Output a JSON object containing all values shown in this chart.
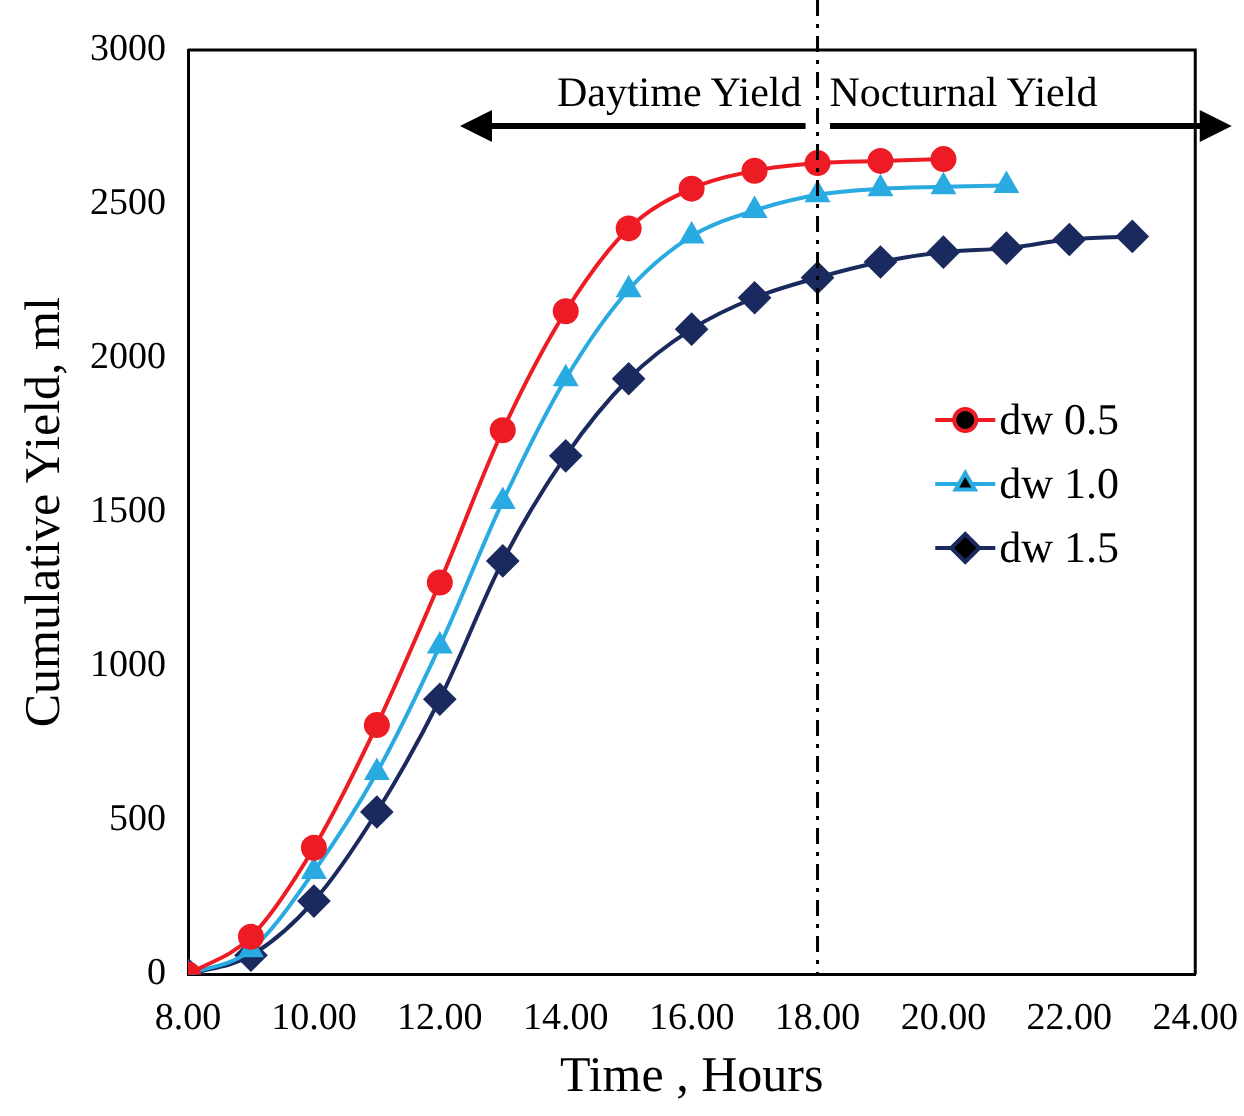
{
  "chart_data": {
    "type": "line",
    "xlabel": "Time , Hours",
    "ylabel": "Cumulative Yield, ml",
    "xlim": [
      8,
      24
    ],
    "xticks": [
      {
        "value": 8,
        "label": "8.00"
      },
      {
        "value": 10,
        "label": "10.00"
      },
      {
        "value": 12,
        "label": "12.00"
      },
      {
        "value": 14,
        "label": "14.00"
      },
      {
        "value": 16,
        "label": "16.00"
      },
      {
        "value": 18,
        "label": "18.00"
      },
      {
        "value": 20,
        "label": "20.00"
      },
      {
        "value": 22,
        "label": "22.00"
      },
      {
        "value": 24,
        "label": "24.00"
      }
    ],
    "ylim": [
      0,
      3000
    ],
    "yticks": [
      0,
      500,
      1000,
      1500,
      2000,
      2500,
      3000
    ],
    "grid": false,
    "legend": "right",
    "series": [
      {
        "name": "dw 0.5",
        "color": "#ed1c24",
        "marker": "circle",
        "x": [
          8,
          9,
          10,
          11,
          12,
          13,
          14,
          15,
          16,
          17,
          18,
          19,
          20
        ],
        "values": [
          0,
          122,
          411,
          809,
          1272,
          1766,
          2152,
          2421,
          2550,
          2608,
          2633,
          2640,
          2646
        ]
      },
      {
        "name": "dw 1.0",
        "color": "#29abe2",
        "marker": "triangle",
        "x": [
          8,
          9,
          10,
          11,
          12,
          13,
          14,
          15,
          16,
          17,
          18,
          19,
          20,
          21
        ],
        "values": [
          0,
          80,
          334,
          655,
          1066,
          1535,
          1933,
          2222,
          2396,
          2479,
          2530,
          2550,
          2556,
          2560
        ]
      },
      {
        "name": "dw 1.5",
        "color": "#1b2a5e",
        "marker": "diamond",
        "x": [
          8,
          9,
          10,
          11,
          12,
          13,
          14,
          15,
          16,
          17,
          18,
          19,
          20,
          21,
          22,
          23
        ],
        "values": [
          0,
          62,
          238,
          527,
          893,
          1342,
          1683,
          1933,
          2094,
          2196,
          2261,
          2312,
          2344,
          2357,
          2385,
          2395
        ]
      }
    ],
    "ref_lines": [
      {
        "axis": "x",
        "value": 18,
        "color": "#000000",
        "line_style": "dashed"
      }
    ],
    "annotations": [
      "Daytime Yield",
      "Nocturnal Yield"
    ]
  }
}
